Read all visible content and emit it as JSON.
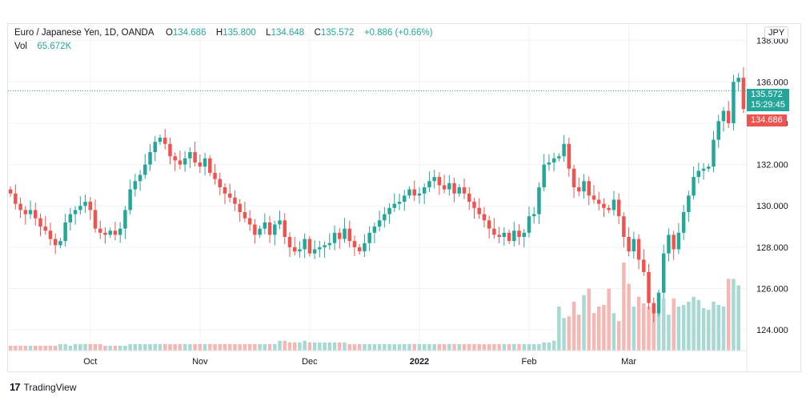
{
  "legend": {
    "symbol": "Euro / Japanese Yen, 1D, OANDA",
    "o_label": "O",
    "o": "134.686",
    "h_label": "H",
    "h": "135.800",
    "l_label": "L",
    "l": "134.648",
    "c_label": "C",
    "c": "135.572",
    "change": "+0.886 (+0.66%)",
    "vol_label": "Vol",
    "vol": "65.672K"
  },
  "currency": "JPY",
  "price_tags": {
    "close": "135.572",
    "countdown": "15:29:45",
    "open": "134.686"
  },
  "footer": {
    "brand": "TradingView",
    "logo": "17"
  },
  "colors": {
    "up": "#26a69a",
    "down": "#ef5350",
    "up_vol": "#a7d8d2",
    "down_vol": "#f5b7b4",
    "grid": "#f0f3fa"
  },
  "chart_data": {
    "type": "candlestick",
    "title": "Euro / Japanese Yen, 1D, OANDA",
    "ylim": [
      123,
      138.8
    ],
    "y_ticks": [
      "138.000",
      "136.000",
      "134.000",
      "132.000",
      "130.000",
      "128.000",
      "126.000",
      "124.000"
    ],
    "x_ticks": [
      {
        "label": "Oct",
        "index": 16
      },
      {
        "label": "Nov",
        "index": 38
      },
      {
        "label": "Dec",
        "index": 60
      },
      {
        "label": "2022",
        "index": 82
      },
      {
        "label": "Feb",
        "index": 104
      },
      {
        "label": "Mar",
        "index": 124
      }
    ],
    "close_series": [
      130.6,
      130.1,
      129.8,
      129.6,
      129.8,
      129.4,
      129.0,
      128.8,
      128.4,
      128.1,
      128.3,
      129.2,
      129.6,
      129.8,
      130.0,
      130.2,
      129.8,
      128.9,
      128.7,
      128.6,
      128.8,
      128.6,
      128.9,
      129.8,
      130.8,
      131.2,
      131.5,
      132.0,
      132.6,
      133.1,
      133.3,
      133.0,
      132.4,
      132.2,
      132.0,
      132.3,
      132.6,
      132.1,
      131.9,
      132.3,
      131.6,
      131.3,
      130.9,
      130.6,
      130.4,
      130.1,
      129.7,
      129.4,
      129.1,
      128.6,
      128.9,
      129.2,
      128.6,
      129.1,
      129.3,
      128.5,
      128.0,
      127.8,
      127.9,
      128.4,
      127.7,
      127.9,
      128.0,
      128.1,
      128.2,
      128.7,
      128.4,
      128.9,
      128.3,
      128.0,
      127.8,
      128.2,
      128.7,
      129.0,
      129.3,
      129.6,
      129.9,
      130.1,
      130.2,
      130.5,
      130.8,
      130.5,
      130.6,
      130.9,
      131.2,
      131.4,
      131.0,
      130.8,
      131.1,
      130.6,
      130.9,
      130.6,
      130.2,
      129.9,
      129.6,
      129.3,
      128.9,
      128.6,
      128.5,
      128.7,
      128.3,
      128.8,
      128.5,
      128.7,
      129.5,
      129.6,
      130.9,
      132.0,
      132.1,
      132.3,
      132.4,
      133.0,
      131.8,
      130.9,
      130.7,
      131.2,
      130.5,
      130.3,
      130.1,
      129.9,
      129.8,
      130.3,
      129.5,
      128.5,
      127.8,
      128.4,
      127.4,
      126.8,
      125.3,
      124.8,
      125.8,
      127.7,
      128.6,
      127.9,
      128.7,
      129.7,
      130.5,
      131.4,
      131.7,
      131.8,
      131.9,
      133.2,
      134.1,
      134.6,
      134.0,
      136.0,
      136.2,
      134.686
    ],
    "volume_series": [
      3,
      3,
      3,
      3,
      3,
      3,
      3,
      3,
      3,
      3,
      4,
      4,
      3,
      4,
      4,
      4,
      4,
      4,
      4,
      3,
      3,
      3,
      3,
      3,
      4,
      4,
      4,
      4,
      4,
      4,
      4,
      4,
      4,
      4,
      4,
      4,
      4,
      4,
      4,
      4,
      4,
      4,
      4,
      4,
      4,
      4,
      4,
      4,
      4,
      4,
      4,
      4,
      4,
      4,
      6,
      6,
      5,
      5,
      5,
      6,
      5,
      5,
      5,
      5,
      5,
      5,
      5,
      5,
      4,
      4,
      4,
      4,
      4,
      4,
      4,
      4,
      4,
      4,
      4,
      4,
      4,
      4,
      4,
      4,
      4,
      4,
      4,
      4,
      4,
      4,
      4,
      4,
      4,
      4,
      4,
      4,
      4,
      4,
      4,
      4,
      4,
      4,
      4,
      4,
      4,
      4,
      4,
      5,
      5,
      6,
      27,
      20,
      21,
      30,
      22,
      34,
      38,
      23,
      27,
      28,
      38,
      23,
      18,
      54,
      41,
      27,
      33,
      29,
      27,
      29,
      24,
      32,
      22,
      32,
      27,
      28,
      30,
      33,
      31,
      26,
      25,
      30,
      28,
      27,
      44,
      44,
      40
    ]
  }
}
